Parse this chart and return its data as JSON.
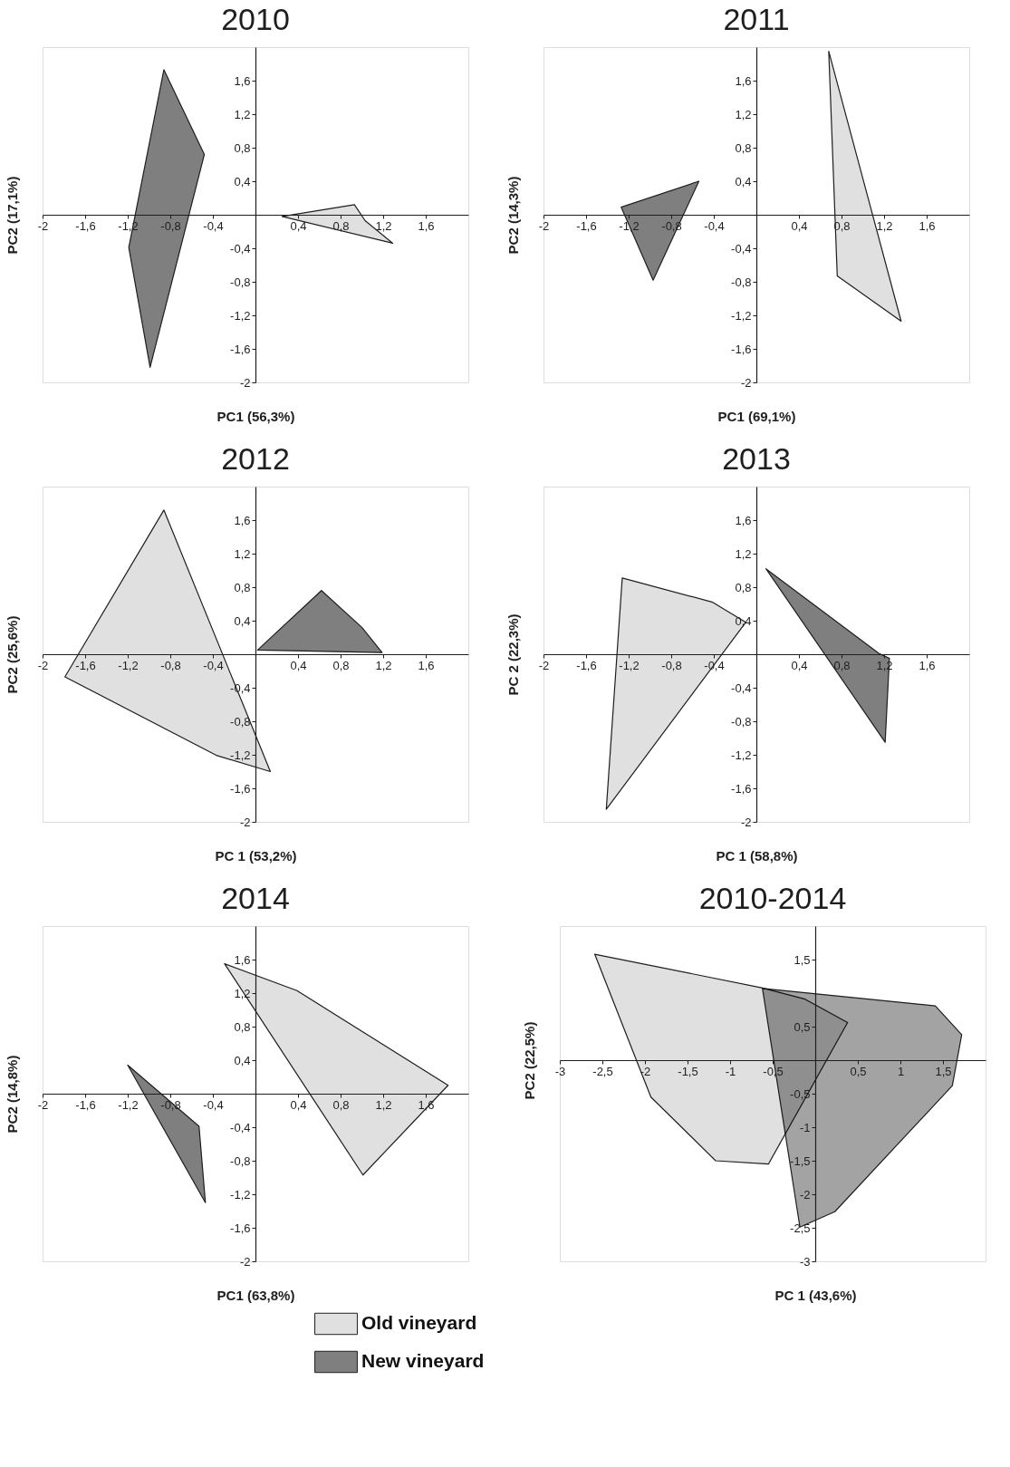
{
  "chart_data": [
    {
      "type": "area",
      "title": "2010",
      "xlabel": "PC1 (56,3%)",
      "ylabel": "PC2 (17,1%)",
      "xlim": [
        -2,
        2
      ],
      "ylim": [
        -2,
        2
      ],
      "xticks": [
        -2,
        {
          "value": -1.6,
          "label": "-1,6"
        },
        {
          "value": -1.2,
          "label": "-1,2"
        },
        {
          "value": -0.8,
          "label": "-0,8"
        },
        {
          "value": -0.4,
          "label": "-0,4"
        },
        {
          "value": 0.4,
          "label": "0,4"
        },
        {
          "value": 0.8,
          "label": "0,8"
        },
        {
          "value": 1.2,
          "label": "1,2"
        },
        {
          "value": 1.6,
          "label": "1,6"
        }
      ],
      "yticks": [
        -2,
        {
          "value": -1.6,
          "label": "-1,6"
        },
        {
          "value": -1.2,
          "label": "-1,2"
        },
        {
          "value": -0.8,
          "label": "-0,8"
        },
        {
          "value": -0.4,
          "label": "-0,4"
        },
        {
          "value": 0.4,
          "label": "0,4"
        },
        {
          "value": 0.8,
          "label": "0,8"
        },
        {
          "value": 1.2,
          "label": "1,2"
        },
        {
          "value": 1.6,
          "label": "1,6"
        }
      ],
      "series": [
        {
          "color": "#e0e0e0",
          "x": [
            0.25,
            0.93,
            1.03,
            1.29
          ],
          "values": [
            -0.02,
            0.12,
            -0.07,
            -0.34
          ]
        },
        {
          "color": "#7f7f7f",
          "x": [
            -0.86,
            -0.48,
            -0.99,
            -1.19
          ],
          "values": [
            1.73,
            0.72,
            -1.82,
            -0.39
          ]
        }
      ]
    },
    {
      "type": "area",
      "title": "2011",
      "xlabel": "PC1 (69,1%)",
      "ylabel": "PC2 (14,3%)",
      "xlim": [
        -2,
        2
      ],
      "ylim": [
        -2,
        2
      ],
      "xticks": [
        -2,
        {
          "value": -1.6,
          "label": "-1,6"
        },
        {
          "value": -1.2,
          "label": "-1,2"
        },
        {
          "value": -0.8,
          "label": "-0,8"
        },
        {
          "value": -0.4,
          "label": "-0,4"
        },
        {
          "value": 0.4,
          "label": "0,4"
        },
        {
          "value": 0.8,
          "label": "0,8"
        },
        {
          "value": 1.2,
          "label": "1,2"
        },
        {
          "value": 1.6,
          "label": "1,6"
        }
      ],
      "yticks": [
        -2,
        {
          "value": -1.6,
          "label": "-1,6"
        },
        {
          "value": -1.2,
          "label": "-1,2"
        },
        {
          "value": -0.8,
          "label": "-0,8"
        },
        {
          "value": -0.4,
          "label": "-0,4"
        },
        {
          "value": 0.4,
          "label": "0,4"
        },
        {
          "value": 0.8,
          "label": "0,8"
        },
        {
          "value": 1.2,
          "label": "1,2"
        },
        {
          "value": 1.6,
          "label": "1,6"
        }
      ],
      "series": [
        {
          "color": "#e0e0e0",
          "x": [
            0.68,
            1.36,
            0.76
          ],
          "values": [
            1.95,
            -1.27,
            -0.73
          ]
        },
        {
          "color": "#7f7f7f",
          "x": [
            -1.27,
            -0.54,
            -0.97
          ],
          "values": [
            0.09,
            0.4,
            -0.78
          ]
        }
      ]
    },
    {
      "type": "area",
      "title": "2012",
      "xlabel": "PC 1 (53,2%)",
      "ylabel": "PC2 (25,6%)",
      "xlim": [
        -2,
        2
      ],
      "ylim": [
        -2,
        2
      ],
      "xticks": [
        -2,
        {
          "value": -1.6,
          "label": "-1,6"
        },
        {
          "value": -1.2,
          "label": "-1,2"
        },
        {
          "value": -0.8,
          "label": "-0,8"
        },
        {
          "value": -0.4,
          "label": "-0,4"
        },
        {
          "value": 0.4,
          "label": "0,4"
        },
        {
          "value": 0.8,
          "label": "0,8"
        },
        {
          "value": 1.2,
          "label": "1,2"
        },
        {
          "value": 1.6,
          "label": "1,6"
        }
      ],
      "yticks": [
        -2,
        {
          "value": -1.6,
          "label": "-1,6"
        },
        {
          "value": -1.2,
          "label": "-1,2"
        },
        {
          "value": -0.8,
          "label": "-0,8"
        },
        {
          "value": -0.4,
          "label": "-0,4"
        },
        {
          "value": 0.4,
          "label": "0,4"
        },
        {
          "value": 0.8,
          "label": "0,8"
        },
        {
          "value": 1.2,
          "label": "1,2"
        },
        {
          "value": 1.6,
          "label": "1,6"
        }
      ],
      "series": [
        {
          "color": "#e0e0e0",
          "x": [
            -0.86,
            0.14,
            -0.36,
            -1.79
          ],
          "values": [
            1.72,
            -1.4,
            -1.21,
            -0.27
          ]
        },
        {
          "color": "#7f7f7f",
          "x": [
            0.02,
            0.62,
            1.0,
            1.19
          ],
          "values": [
            0.05,
            0.76,
            0.32,
            0.02
          ]
        }
      ]
    },
    {
      "type": "area",
      "title": "2013",
      "xlabel": "PC 1 (58,8%)",
      "ylabel": "PC 2 (22,3%)",
      "xlim": [
        -2,
        2
      ],
      "ylim": [
        -2,
        2
      ],
      "xticks": [
        -2,
        {
          "value": -1.6,
          "label": "-1,6"
        },
        {
          "value": -1.2,
          "label": "-1,2"
        },
        {
          "value": -0.8,
          "label": "-0,8"
        },
        {
          "value": -0.4,
          "label": "-0,4"
        },
        {
          "value": 0.4,
          "label": "0,4"
        },
        {
          "value": 0.8,
          "label": "0,8"
        },
        {
          "value": 1.2,
          "label": "1,2"
        },
        {
          "value": 1.6,
          "label": "1,6"
        }
      ],
      "yticks": [
        -2,
        {
          "value": -1.6,
          "label": "-1,6"
        },
        {
          "value": -1.2,
          "label": "-1,2"
        },
        {
          "value": -0.8,
          "label": "-0,8"
        },
        {
          "value": -0.4,
          "label": "-0,4"
        },
        {
          "value": 0.4,
          "label": "0,4"
        },
        {
          "value": 0.8,
          "label": "0,8"
        },
        {
          "value": 1.2,
          "label": "1,2"
        },
        {
          "value": 1.6,
          "label": "1,6"
        }
      ],
      "series": [
        {
          "color": "#e0e0e0",
          "x": [
            -1.26,
            -0.41,
            -0.1,
            -1.41
          ],
          "values": [
            0.91,
            0.62,
            0.38,
            -1.85
          ]
        },
        {
          "color": "#7f7f7f",
          "x": [
            0.09,
            1.15,
            1.25,
            1.21
          ],
          "values": [
            1.02,
            0.01,
            -0.05,
            -1.05
          ]
        }
      ]
    },
    {
      "type": "area",
      "title": "2014",
      "xlabel": "PC1 (63,8%)",
      "ylabel": "PC2 (14,8%)",
      "xlim": [
        -2,
        2
      ],
      "ylim": [
        -2,
        2
      ],
      "legend": "bottom right",
      "xticks": [
        -2,
        {
          "value": -1.6,
          "label": "-1,6"
        },
        {
          "value": -1.2,
          "label": "-1,2"
        },
        {
          "value": -0.8,
          "label": "-0,8"
        },
        {
          "value": -0.4,
          "label": "-0,4"
        },
        {
          "value": 0.4,
          "label": "0,4"
        },
        {
          "value": 0.8,
          "label": "0,8"
        },
        {
          "value": 1.2,
          "label": "1,2"
        },
        {
          "value": 1.6,
          "label": "1,6"
        }
      ],
      "yticks": [
        -2,
        {
          "value": -1.6,
          "label": "-1,6"
        },
        {
          "value": -1.2,
          "label": "-1,2"
        },
        {
          "value": -0.8,
          "label": "-0,8"
        },
        {
          "value": -0.4,
          "label": "-0,4"
        },
        {
          "value": 0.4,
          "label": "0,4"
        },
        {
          "value": 0.8,
          "label": "0,8"
        },
        {
          "value": 1.2,
          "label": "1,2"
        },
        {
          "value": 1.6,
          "label": "1,6"
        }
      ],
      "series": [
        {
          "name": "Old vineyard",
          "color": "#e0e0e0",
          "x": [
            -0.29,
            0.39,
            1.81,
            1.01
          ],
          "values": [
            1.55,
            1.23,
            0.1,
            -0.97
          ]
        },
        {
          "name": "New vineyard",
          "color": "#7f7f7f",
          "x": [
            -1.2,
            -0.53,
            -0.47
          ],
          "values": [
            0.34,
            -0.39,
            -1.3
          ]
        }
      ]
    },
    {
      "type": "area",
      "title": "2010-2014",
      "xlabel": "PC 1 (43,6%)",
      "ylabel": "PC2 (22,5%)",
      "xlim": [
        -3,
        2
      ],
      "ylim": [
        -3,
        2
      ],
      "xticks": [
        -3,
        {
          "value": -2.5,
          "label": "-2,5"
        },
        -2,
        {
          "value": -1.5,
          "label": "-1,5"
        },
        -1,
        {
          "value": -0.5,
          "label": "-0,5"
        },
        {
          "value": 0.5,
          "label": "0,5"
        },
        1,
        {
          "value": 1.5,
          "label": "1,5"
        }
      ],
      "yticks": [
        -3,
        {
          "value": -2.5,
          "label": "-2,5"
        },
        -2,
        {
          "value": -1.5,
          "label": "-1,5"
        },
        -1,
        {
          "value": -0.5,
          "label": "-0,5"
        },
        {
          "value": 0.5,
          "label": "0,5"
        },
        {
          "value": 1.5,
          "label": "1,5"
        }
      ],
      "series": [
        {
          "color": "#e0e0e0",
          "x": [
            -2.59,
            -0.63,
            -0.12,
            0.38,
            -0.55,
            -1.17,
            -1.93
          ],
          "values": [
            1.58,
            1.08,
            0.91,
            0.56,
            -1.55,
            -1.5,
            -0.55
          ]
        },
        {
          "color": "#8c8c8c",
          "x": [
            -0.62,
            1.41,
            1.72,
            1.61,
            0.23,
            -0.18
          ],
          "values": [
            1.07,
            0.81,
            0.38,
            -0.38,
            -2.26,
            -2.49
          ]
        }
      ]
    }
  ]
}
